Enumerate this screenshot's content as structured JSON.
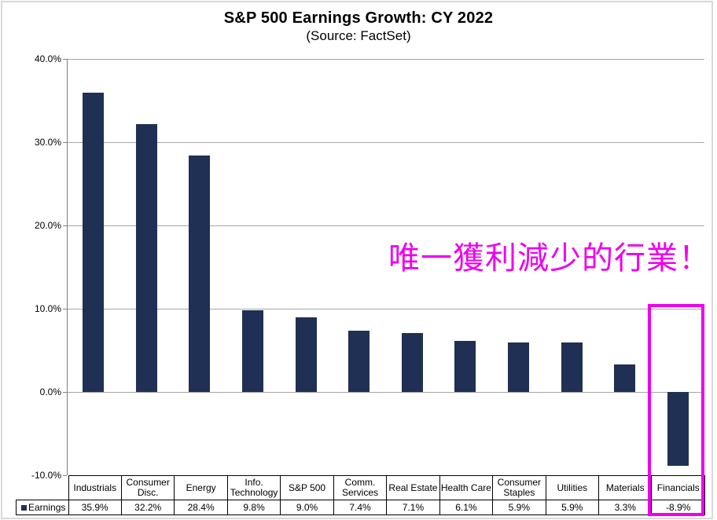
{
  "title": "S&P 500 Earnings Growth: CY 2022",
  "subtitle": "(Source: FactSet)",
  "annotation": {
    "text": "唯一獲利減少的行業！",
    "color": "#ee00ee"
  },
  "highlight_box": {
    "color": "#ee00ee",
    "target": "Financials"
  },
  "legend": {
    "marker": "square",
    "label": "Earnings"
  },
  "colors": {
    "bar": "#1f3054",
    "gridline": "#a6a6a6",
    "axis": "#808080",
    "table_border": "#000000"
  },
  "chart_data": {
    "type": "bar",
    "title": "S&P 500 Earnings Growth: CY 2022",
    "subtitle": "(Source: FactSet)",
    "categories": [
      "Industrials",
      "Consumer Disc.",
      "Energy",
      "Info. Technology",
      "S&P 500",
      "Comm. Services",
      "Real Estate",
      "Health Care",
      "Consumer Staples",
      "Utilities",
      "Materials",
      "Financials"
    ],
    "series": [
      {
        "name": "Earnings",
        "values": [
          35.9,
          32.2,
          28.4,
          9.8,
          9.0,
          7.4,
          7.1,
          6.1,
          5.9,
          5.9,
          3.3,
          -8.9
        ]
      }
    ],
    "value_labels": [
      "35.9%",
      "32.2%",
      "28.4%",
      "9.8%",
      "9.0%",
      "7.4%",
      "7.1%",
      "6.1%",
      "5.9%",
      "5.9%",
      "3.3%",
      "-8.9%"
    ],
    "y_ticks": [
      {
        "value": 40,
        "label": "40.0%"
      },
      {
        "value": 30,
        "label": "30.0%"
      },
      {
        "value": 20,
        "label": "20.0%"
      },
      {
        "value": 10,
        "label": "10.0%"
      },
      {
        "value": 0,
        "label": "0.0%"
      },
      {
        "value": -10,
        "label": "-10.0%"
      }
    ],
    "ylim": [
      -10,
      40
    ],
    "xlabel": "",
    "ylabel": "",
    "grid": true,
    "legend_position": "bottom-table-left"
  }
}
